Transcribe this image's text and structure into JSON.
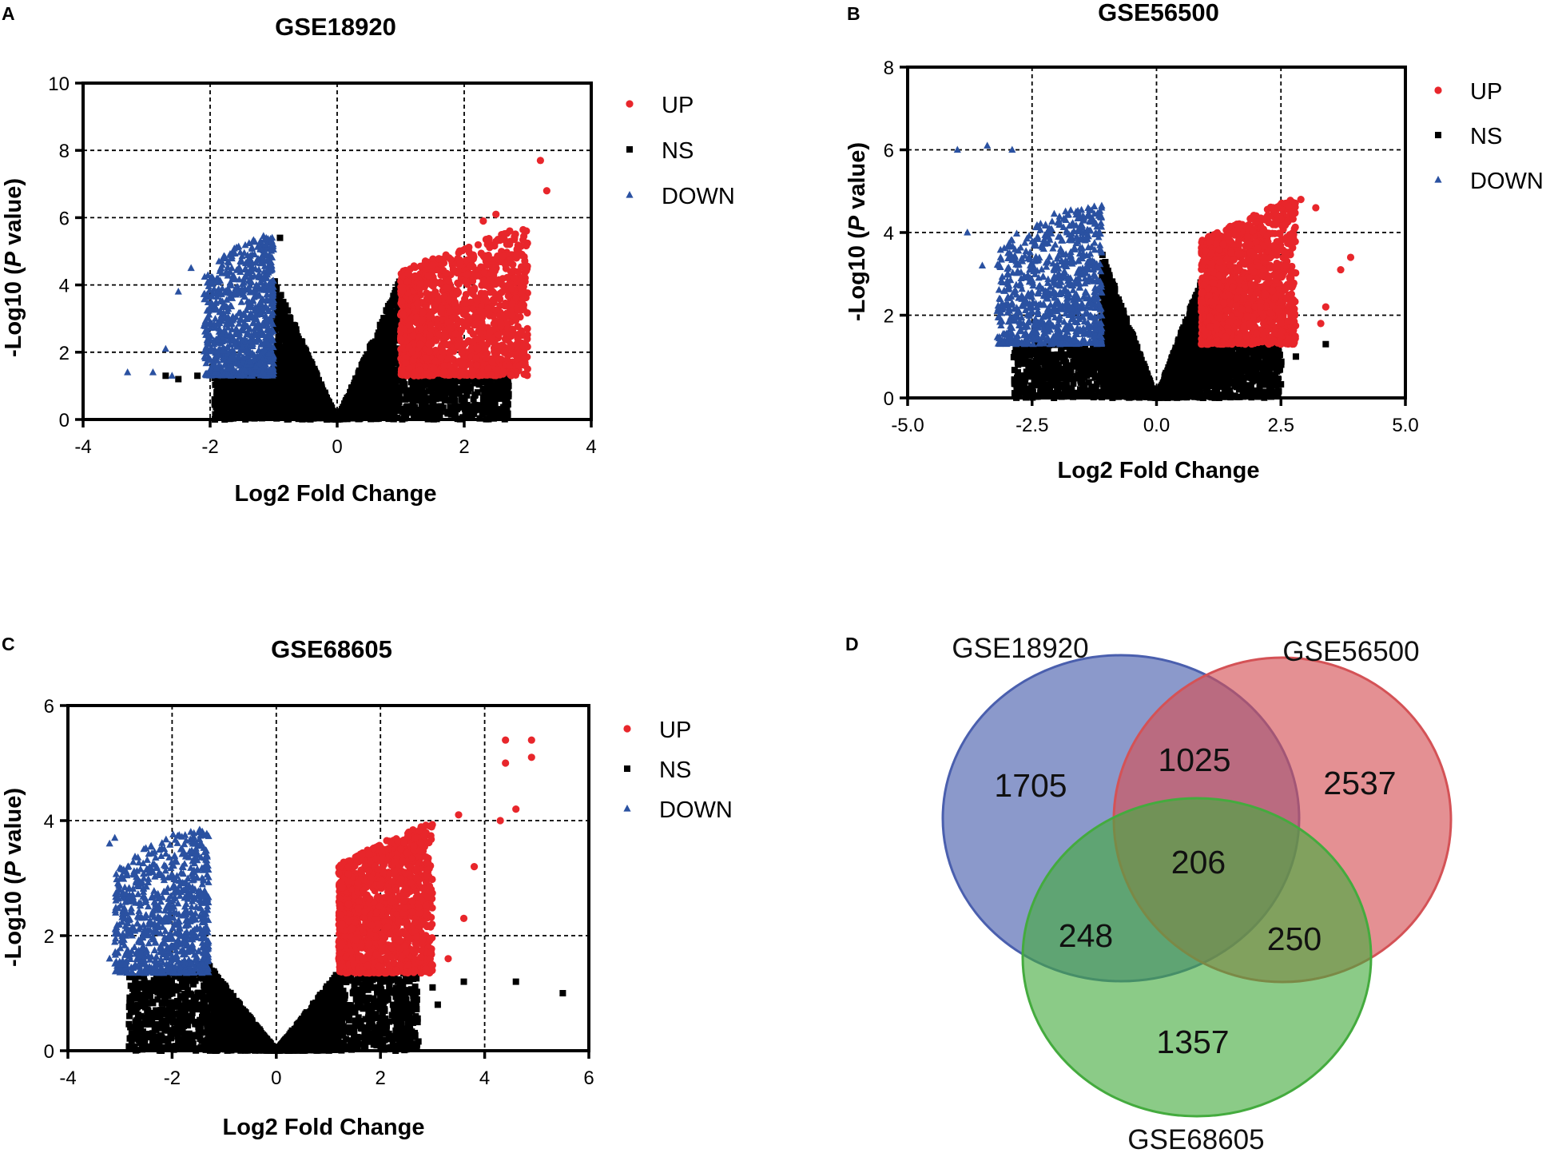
{
  "colors": {
    "up": "#e8262b",
    "ns": "#000000",
    "down": "#2a51a1",
    "grid": "#000000",
    "venn_a": "#4a5fae",
    "venn_b": "#d45256",
    "venn_c": "#44ab3e"
  },
  "legend_labels": [
    "UP",
    "NS",
    "DOWN"
  ],
  "chart_data": [
    {
      "type": "scatter",
      "panel": "A",
      "title": "GSE18920",
      "xlabel": "Log2  Fold Change",
      "ylabel_prefix": "-Log10",
      "ylabel_italic": "P",
      "ylabel_suffix": "value)",
      "ylabel_open": "(",
      "xlim": [
        -4,
        4
      ],
      "ylim": [
        0,
        10
      ],
      "xticks": [
        "-4",
        "-2",
        "0",
        "2",
        "4"
      ],
      "yticks": [
        "0",
        "2",
        "4",
        "6",
        "8",
        "10"
      ],
      "grid_x": [
        -2,
        0,
        2
      ],
      "grid_y": [
        2,
        4,
        6,
        8
      ],
      "legend": [
        "UP",
        "NS",
        "DOWN"
      ],
      "down_cutoff": -1.0,
      "up_cutoff": 1.0,
      "p_floor": 1.3,
      "v_slope": 4.2,
      "down_min_x": -2.1,
      "up_max_x": 3.0,
      "up_outliers": [
        [
          3.2,
          7.7
        ],
        [
          3.3,
          6.8
        ],
        [
          2.5,
          6.1
        ],
        [
          2.3,
          5.9
        ]
      ],
      "down_outliers": [
        [
          -3.3,
          1.4
        ],
        [
          -2.9,
          1.4
        ],
        [
          -2.6,
          1.3
        ],
        [
          -2.7,
          2.1
        ],
        [
          -2.5,
          3.8
        ],
        [
          -2.3,
          4.5
        ]
      ],
      "ns_outliers": [
        [
          -2.7,
          1.3
        ],
        [
          -2.5,
          1.2
        ],
        [
          -2.2,
          1.3
        ],
        [
          -0.9,
          5.4
        ]
      ]
    },
    {
      "type": "scatter",
      "panel": "B",
      "title": "GSE56500",
      "xlabel": "Log2  Fold Change",
      "ylabel_prefix": "-Log10",
      "ylabel_italic": "P",
      "ylabel_suffix": "value)",
      "ylabel_open": "(",
      "xlim": [
        -5,
        5
      ],
      "ylim": [
        0,
        8
      ],
      "xticks": [
        "-5.0",
        "-2.5",
        "0.0",
        "2.5",
        "5.0"
      ],
      "yticks": [
        "0",
        "2",
        "4",
        "6",
        "8"
      ],
      "grid_x": [
        -2.5,
        0,
        2.5
      ],
      "grid_y": [
        2,
        4,
        6
      ],
      "legend": [
        "UP",
        "NS",
        "DOWN"
      ],
      "down_cutoff": -1.1,
      "up_cutoff": 0.9,
      "p_floor": 1.3,
      "v_slope": 3.2,
      "down_min_x": -3.2,
      "up_max_x": 2.8,
      "up_outliers": [
        [
          3.9,
          3.4
        ],
        [
          3.7,
          3.1
        ],
        [
          3.4,
          2.2
        ],
        [
          3.3,
          1.8
        ],
        [
          2.9,
          4.8
        ],
        [
          3.2,
          4.6
        ]
      ],
      "down_outliers": [
        [
          -4.0,
          6.0
        ],
        [
          -3.4,
          6.1
        ],
        [
          -2.9,
          6.0
        ],
        [
          -3.8,
          4.0
        ],
        [
          -3.5,
          3.2
        ],
        [
          -3.2,
          2.1
        ]
      ],
      "ns_outliers": [
        [
          2.8,
          1.0
        ],
        [
          3.4,
          1.3
        ],
        [
          -2.5,
          1.2
        ],
        [
          -2.1,
          1.3
        ]
      ]
    },
    {
      "type": "scatter",
      "panel": "C",
      "title": "GSE68605",
      "xlabel": "Log2  Fold Change",
      "ylabel_prefix": "-Log10",
      "ylabel_italic": "P",
      "ylabel_suffix": "value)",
      "ylabel_open": "(",
      "xlim": [
        -4,
        6
      ],
      "ylim": [
        0,
        6
      ],
      "xticks": [
        "-4",
        "-2",
        "0",
        "2",
        "4",
        "6"
      ],
      "yticks": [
        "0",
        "2",
        "4",
        "6"
      ],
      "grid_x": [
        -2,
        0,
        2,
        4
      ],
      "grid_y": [
        2,
        4
      ],
      "legend": [
        "UP",
        "NS",
        "DOWN"
      ],
      "down_cutoff": -1.3,
      "up_cutoff": 1.2,
      "p_floor": 1.35,
      "v_slope": 1.15,
      "down_min_x": -3.1,
      "up_max_x": 3.0,
      "up_outliers": [
        [
          4.4,
          5.4
        ],
        [
          4.9,
          5.4
        ],
        [
          4.4,
          5.0
        ],
        [
          4.9,
          5.1
        ],
        [
          4.6,
          4.2
        ],
        [
          4.3,
          4.0
        ],
        [
          3.5,
          4.1
        ],
        [
          3.8,
          3.2
        ],
        [
          3.6,
          2.3
        ],
        [
          3.3,
          1.6
        ]
      ],
      "down_outliers": [
        [
          -3.1,
          3.7
        ],
        [
          -3.2,
          3.6
        ],
        [
          -3.2,
          1.6
        ],
        [
          -3.0,
          1.5
        ]
      ],
      "ns_outliers": [
        [
          5.5,
          1.0
        ],
        [
          4.6,
          1.2
        ],
        [
          3.6,
          1.2
        ],
        [
          3.0,
          1.1
        ],
        [
          3.1,
          0.8
        ],
        [
          2.4,
          1.2
        ],
        [
          -2.6,
          0.9
        ],
        [
          -2.6,
          0.6
        ],
        [
          -2.7,
          0.5
        ],
        [
          -2.0,
          0.6
        ],
        [
          -1.8,
          0.5
        ]
      ]
    },
    {
      "type": "venn",
      "panel": "D",
      "sets": [
        "GSE18920",
        "GSE56500",
        "GSE68605"
      ],
      "counts": {
        "a_only": 1705,
        "b_only": 2537,
        "c_only": 1357,
        "ab": 1025,
        "ac": 248,
        "bc": 250,
        "abc": 206
      }
    }
  ]
}
